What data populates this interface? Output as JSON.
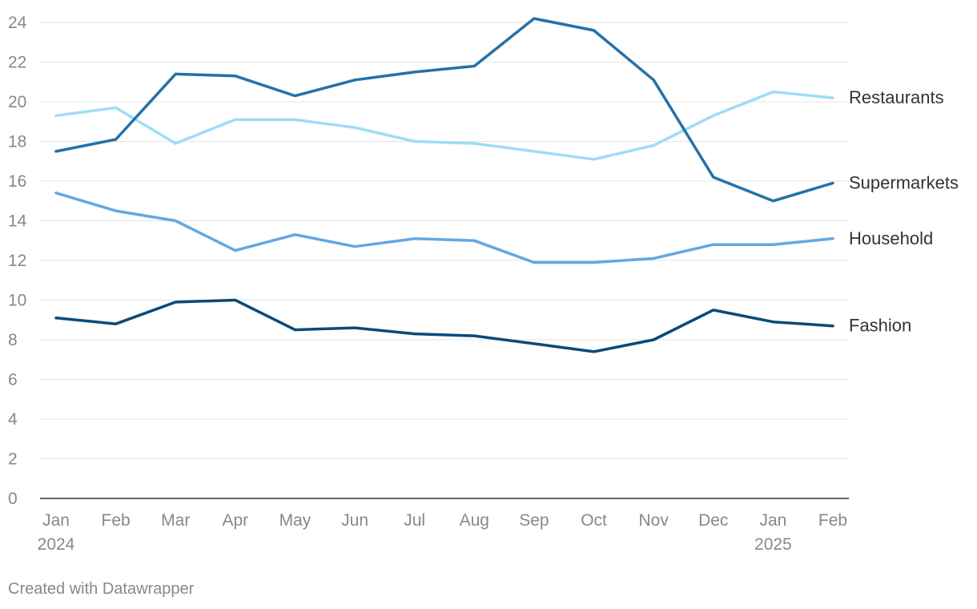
{
  "chart_data": {
    "type": "line",
    "title": "",
    "xlabel": "",
    "ylabel": "",
    "ylim": [
      0,
      24
    ],
    "y_ticks": [
      "0",
      "2",
      "4",
      "6",
      "8",
      "10",
      "12",
      "14",
      "16",
      "18",
      "20",
      "22",
      "24"
    ],
    "categories": [
      "Jan",
      "Feb",
      "Mar",
      "Apr",
      "May",
      "Jun",
      "Jul",
      "Aug",
      "Sep",
      "Oct",
      "Nov",
      "Dec",
      "Jan",
      "Feb"
    ],
    "x_year_labels": [
      "2024",
      "",
      "",
      "",
      "",
      "",
      "",
      "",
      "",
      "",
      "",
      "",
      "2025",
      ""
    ],
    "grid": true,
    "legend": "direct labels at right end of lines",
    "series": [
      {
        "name": "Restaurants",
        "color": "#9fdcf8",
        "values": [
          19.3,
          19.7,
          17.9,
          19.1,
          19.1,
          18.7,
          18.0,
          17.9,
          17.5,
          17.1,
          17.8,
          19.3,
          20.5,
          20.2
        ]
      },
      {
        "name": "Supermarkets",
        "color": "#2571a8",
        "values": [
          17.5,
          18.1,
          21.4,
          21.3,
          20.3,
          21.1,
          21.5,
          21.8,
          24.2,
          23.6,
          21.1,
          16.2,
          15.0,
          15.9
        ]
      },
      {
        "name": "Household",
        "color": "#64a7e2",
        "values": [
          15.4,
          14.5,
          14.0,
          12.5,
          13.3,
          12.7,
          13.1,
          13.0,
          11.9,
          11.9,
          12.1,
          12.8,
          12.8,
          13.1
        ]
      },
      {
        "name": "Fashion",
        "color": "#0a4a7a",
        "values": [
          9.1,
          8.8,
          9.9,
          10.0,
          8.5,
          8.6,
          8.3,
          8.2,
          7.8,
          7.4,
          8.0,
          9.5,
          8.9,
          8.7
        ]
      }
    ]
  },
  "footer": {
    "credit": "Created with Datawrapper"
  }
}
